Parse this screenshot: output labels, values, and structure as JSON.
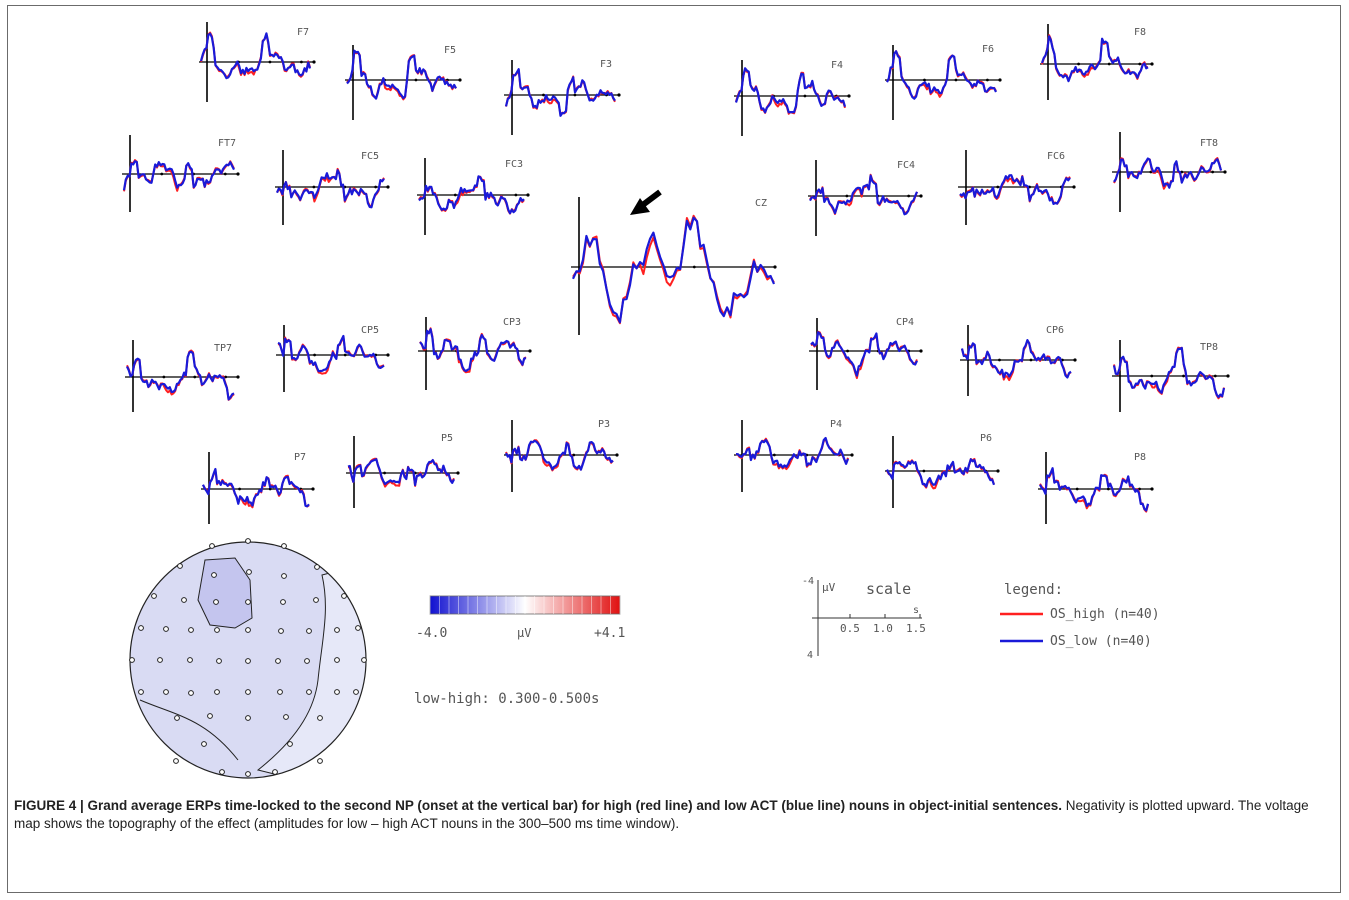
{
  "figure": {
    "electrodes": [
      {
        "label": "F7"
      },
      {
        "label": "F5"
      },
      {
        "label": "F3"
      },
      {
        "label": "F4"
      },
      {
        "label": "F6"
      },
      {
        "label": "F8"
      },
      {
        "label": "FT7"
      },
      {
        "label": "FC5"
      },
      {
        "label": "FC3"
      },
      {
        "label": "FC4"
      },
      {
        "label": "FC6"
      },
      {
        "label": "FT8"
      },
      {
        "label": "CZ"
      },
      {
        "label": "TP7"
      },
      {
        "label": "CP5"
      },
      {
        "label": "CP3"
      },
      {
        "label": "CP4"
      },
      {
        "label": "CP6"
      },
      {
        "label": "TP8"
      },
      {
        "label": "P7"
      },
      {
        "label": "P5"
      },
      {
        "label": "P3"
      },
      {
        "label": "P4"
      },
      {
        "label": "P6"
      },
      {
        "label": "P8"
      }
    ],
    "colorbar": {
      "min_label": "-4.0",
      "unit_label": "µV",
      "max_label": "+4.1",
      "neg_color": "#1010d0",
      "pos_color": "#e01010",
      "mid_color": "#ffffff"
    },
    "window_label": "low-high: 0.300-0.500s",
    "scale": {
      "title": "scale",
      "unit": "µV",
      "y_top": "-4",
      "y_bottom": "4",
      "x_unit": "s",
      "x_ticks": [
        "0.5",
        "1.0",
        "1.5"
      ]
    },
    "legend": {
      "title": "legend:",
      "entries": [
        {
          "label": "OS_high (n=40)",
          "color": "#ff2020"
        },
        {
          "label": "OS_low (n=40)",
          "color": "#1a1ad8"
        }
      ]
    },
    "topomap": {
      "fill_color": "#d9dbf3",
      "dark_region_color": "#c4c5ee",
      "light_region_color": "#e6e8f8"
    },
    "arrow_icon": "arrow-pointing-to-peak-icon"
  },
  "caption": {
    "bold_text": "FIGURE 4 | Grand average ERPs time-locked to the second NP (onset at the vertical bar) for high (red line) and low ACT (blue line) nouns in object-initial sentences.",
    "body_text": " Negativity is plotted upward. The voltage map shows the topography of the effect (amplitudes for low – high ACT nouns in the 300–500 ms time window)."
  }
}
